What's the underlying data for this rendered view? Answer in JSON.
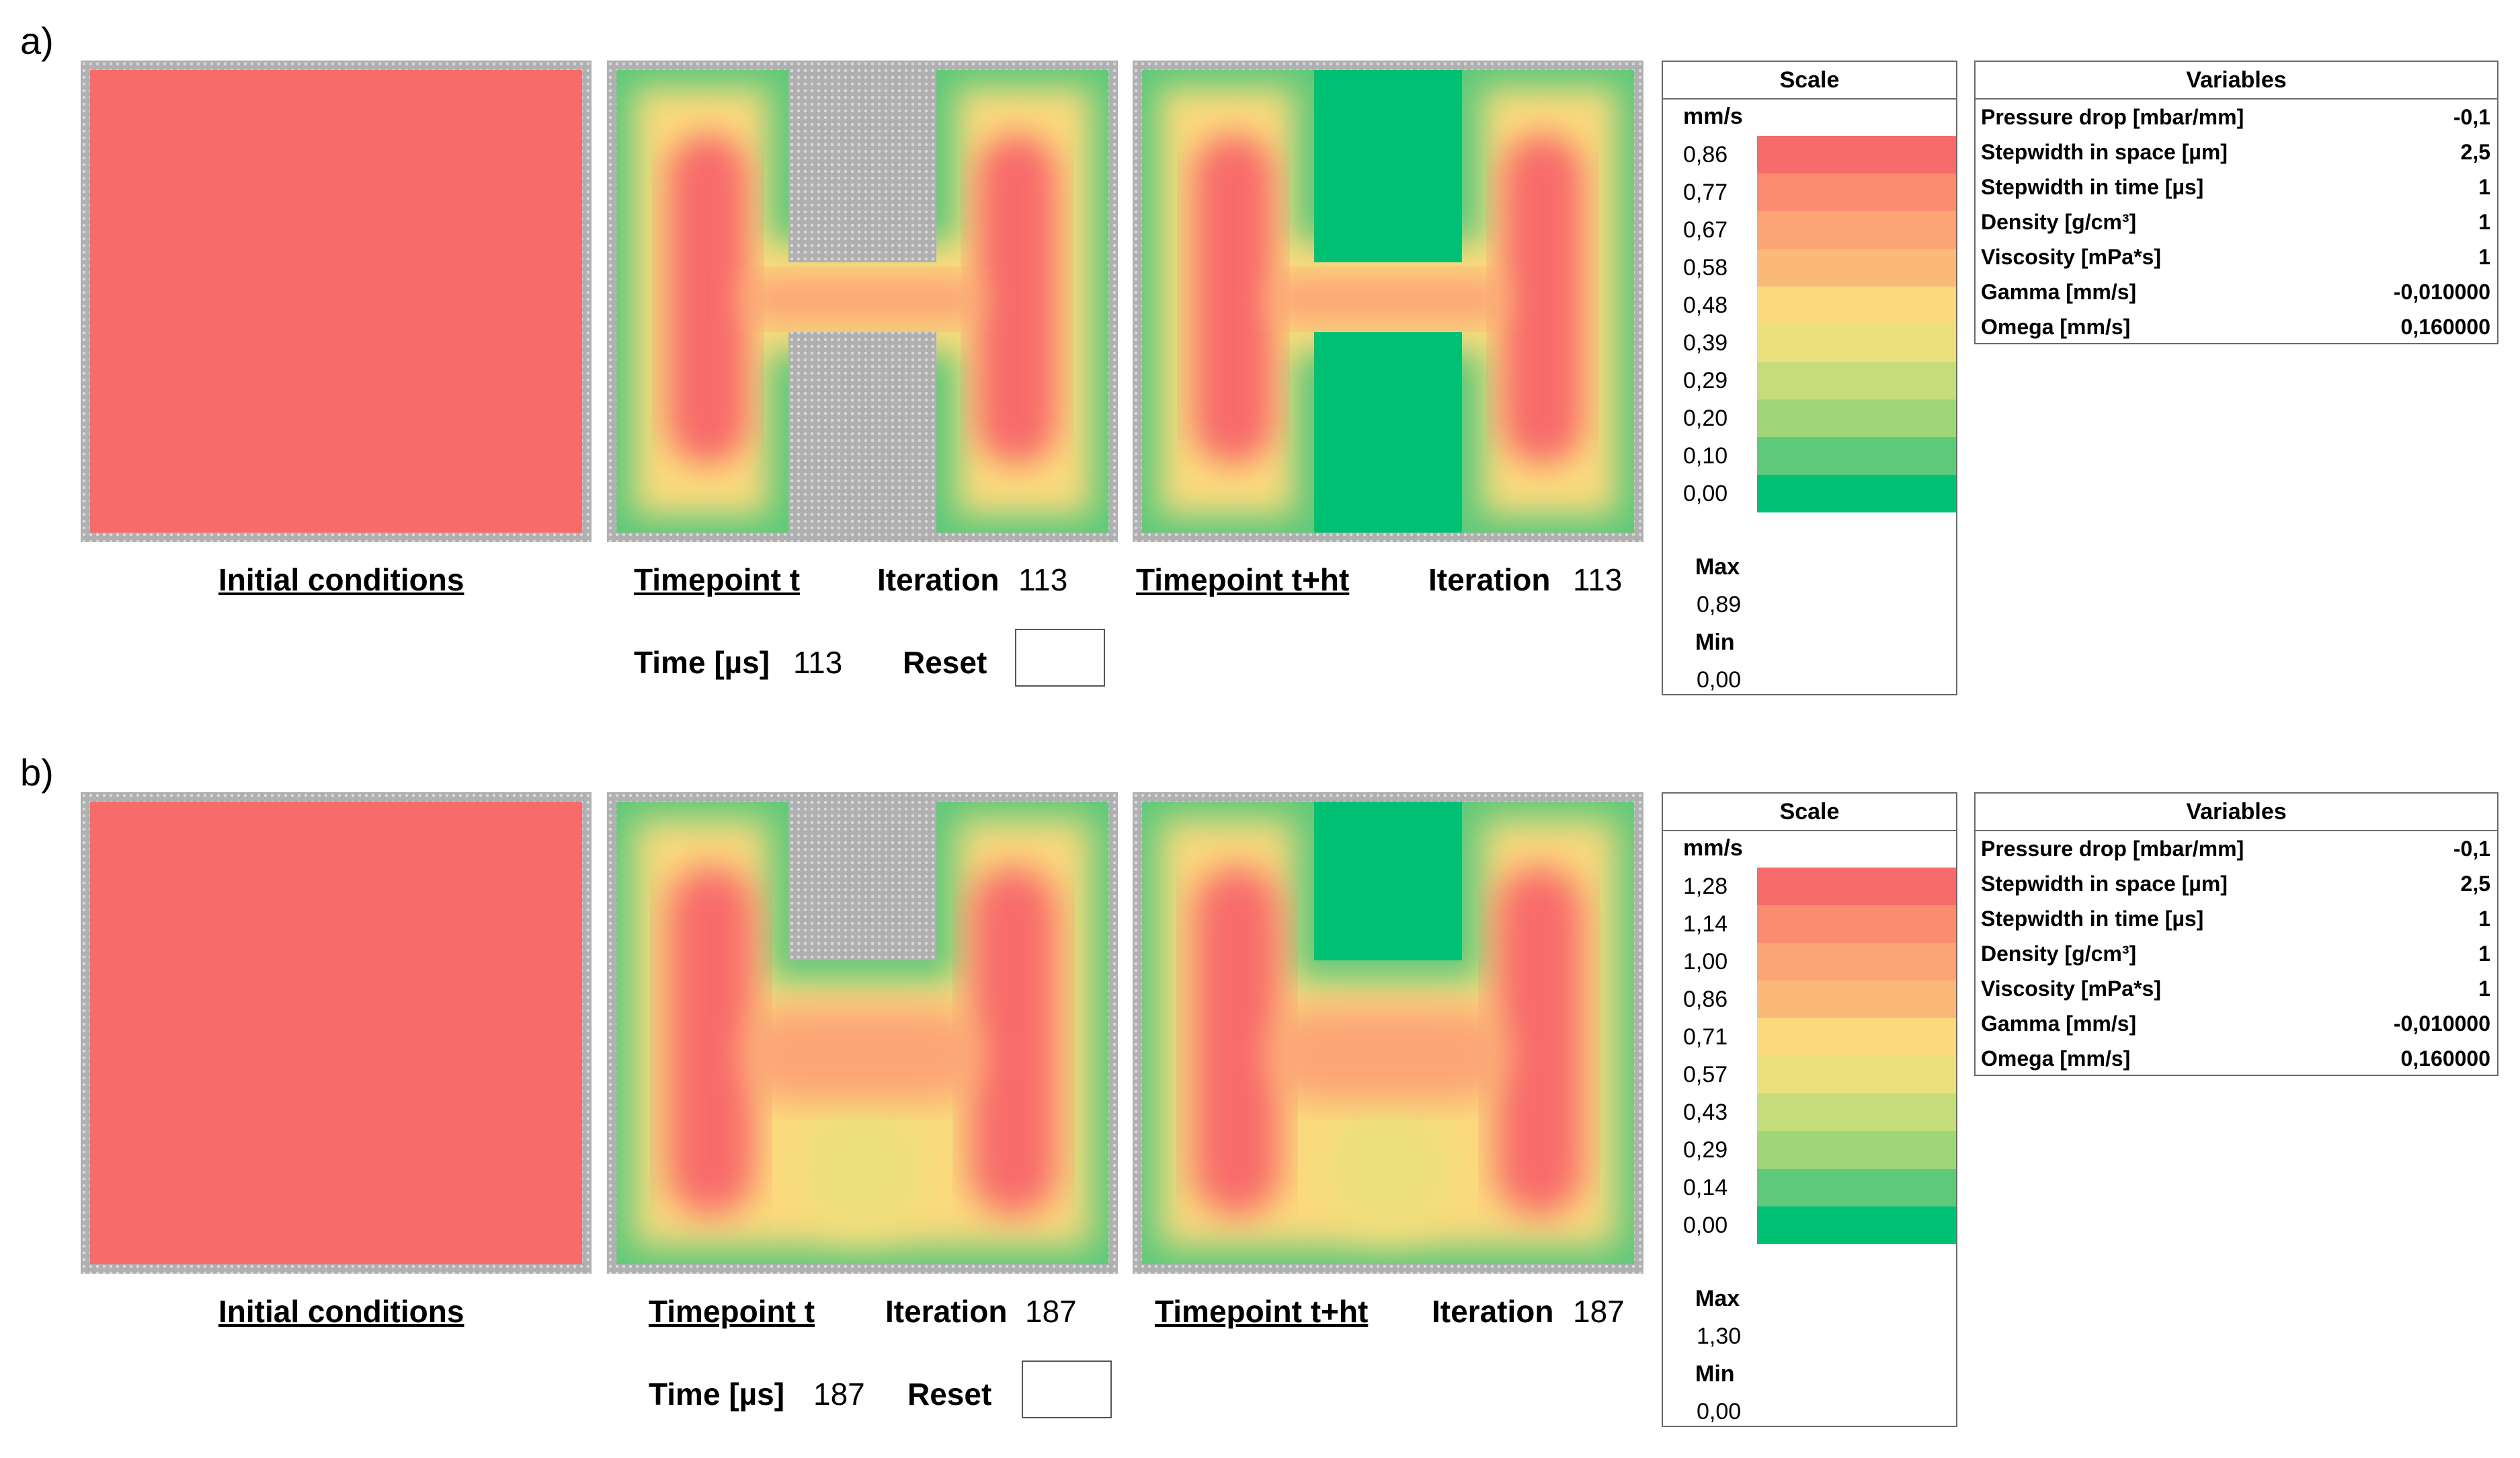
{
  "colors": {
    "red": "#f86b6b",
    "orange_red": "#fa8c70",
    "orange": "#fca476",
    "light_orange": "#fbb979",
    "yellow": "#fbda7d",
    "light_yellow": "#ece07c",
    "yellow_green": "#c5dc7b",
    "light_green": "#9fd67a",
    "green": "#5ec97a",
    "dark_green": "#00c074",
    "wall_grey": "#b0b0b0"
  },
  "panels": [
    {
      "label": "a)",
      "initial_label": "Initial conditions",
      "timepoint_t_label": "Timepoint t",
      "iteration_label": "Iteration",
      "iteration_t": "113",
      "timepoint_ht_label": "Timepoint t+ht",
      "iteration_ht": "113",
      "time_label": "Time [µs]",
      "time_value": "113",
      "reset_label": "Reset",
      "scale": {
        "title": "Scale",
        "unit": "mm/s",
        "values": [
          "0,86",
          "0,77",
          "0,67",
          "0,58",
          "0,48",
          "0,39",
          "0,29",
          "0,20",
          "0,10",
          "0,00"
        ],
        "max_label": "Max",
        "max_value": "0,89",
        "min_label": "Min",
        "min_value": "0,00"
      },
      "variables": {
        "title": "Variables",
        "rows": [
          {
            "name": "Pressure drop [mbar/mm]",
            "value": "-0,1"
          },
          {
            "name": "Stepwidth in space [µm]",
            "value": "2,5"
          },
          {
            "name": "Stepwidth in time [µs]",
            "value": "1"
          },
          {
            "name": "Density [g/cm³]",
            "value": "1"
          },
          {
            "name": "Viscosity [mPa*s]",
            "value": "1"
          },
          {
            "name": "Gamma [mm/s]",
            "value": "-0,010000"
          },
          {
            "name": "Omega [mm/s]",
            "value": "0,160000"
          }
        ]
      }
    },
    {
      "label": "b)",
      "initial_label": "Initial conditions",
      "timepoint_t_label": "Timepoint t",
      "iteration_label": "Iteration",
      "iteration_t": "187",
      "timepoint_ht_label": "Timepoint t+ht",
      "iteration_ht": "187",
      "time_label": "Time [µs]",
      "time_value": "187",
      "reset_label": "Reset",
      "scale": {
        "title": "Scale",
        "unit": "mm/s",
        "values": [
          "1,28",
          "1,14",
          "1,00",
          "0,86",
          "0,71",
          "0,57",
          "0,43",
          "0,29",
          "0,14",
          "0,00"
        ],
        "max_label": "Max",
        "max_value": "1,30",
        "min_label": "Min",
        "min_value": "0,00"
      },
      "variables": {
        "title": "Variables",
        "rows": [
          {
            "name": "Pressure drop [mbar/mm]",
            "value": "-0,1"
          },
          {
            "name": "Stepwidth in space [µm]",
            "value": "2,5"
          },
          {
            "name": "Stepwidth in time [µs]",
            "value": "1"
          },
          {
            "name": "Density [g/cm³]",
            "value": "1"
          },
          {
            "name": "Viscosity [mPa*s]",
            "value": "1"
          },
          {
            "name": "Gamma [mm/s]",
            "value": "-0,010000"
          },
          {
            "name": "Omega [mm/s]",
            "value": "0,160000"
          }
        ]
      }
    }
  ]
}
